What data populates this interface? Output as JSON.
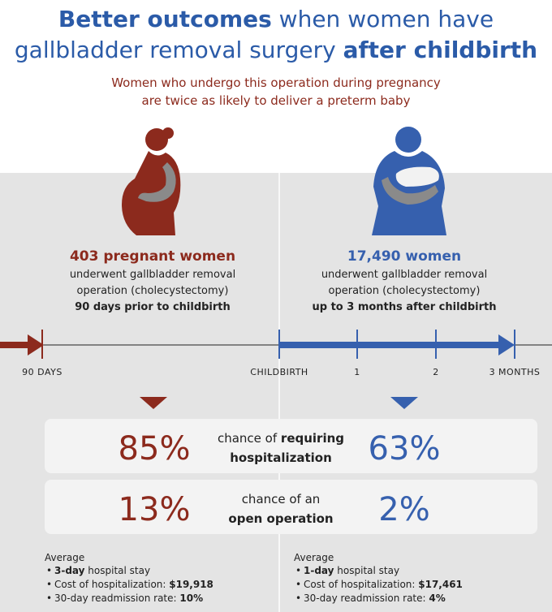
{
  "header": {
    "title": [
      [
        {
          "text": "Better outcomes",
          "bold": true
        },
        {
          "text": " when women have"
        }
      ],
      [
        {
          "text": "gallbladder removal surgery "
        },
        {
          "text": "after childbirth",
          "bold": true
        }
      ]
    ],
    "subtitle": [
      "Women who undergo this operation during pregnancy",
      "are twice as likely to deliver a preterm baby"
    ]
  },
  "groups": [
    {
      "color": "#8c2a1d",
      "count": "403 pregnant women",
      "lines": [
        {
          "text": "underwent gallbladder removal"
        },
        {
          "text": "operation (cholecystectomy)"
        },
        {
          "text": "90 days prior to childbirth",
          "bold": true
        }
      ],
      "stats": [
        "85%",
        "13%"
      ],
      "average": {
        "heading": "Average",
        "items": [
          [
            {
              "text": "3-day",
              "bold": true
            },
            {
              "text": " hospital stay"
            }
          ],
          [
            {
              "text": "Cost of hospitalization: "
            },
            {
              "text": "$19,918",
              "bold": true
            }
          ],
          [
            {
              "text": "30-day readmission rate: "
            },
            {
              "text": "10%",
              "bold": true
            }
          ]
        ]
      }
    },
    {
      "color": "#3660ae",
      "count": "17,490 women",
      "lines": [
        {
          "text": "underwent gallbladder removal"
        },
        {
          "text": "operation (cholecystectomy)"
        },
        {
          "text": "up to 3 months after childbirth",
          "bold": true
        }
      ],
      "stats": [
        "63%",
        "2%"
      ],
      "average": {
        "heading": "Average",
        "items": [
          [
            {
              "text": "1-day",
              "bold": true
            },
            {
              "text": " hospital stay"
            }
          ],
          [
            {
              "text": "Cost of hospitalization: "
            },
            {
              "text": "$17,461",
              "bold": true
            }
          ],
          [
            {
              "text": "30-day readmission rate: "
            },
            {
              "text": "4%",
              "bold": true
            }
          ]
        ]
      }
    }
  ],
  "timeline": {
    "labels": [
      "90 DAYS",
      "CHILDBIRTH",
      "1",
      "2",
      "3 MONTHS"
    ]
  },
  "stats": [
    {
      "label": [
        [
          {
            "text": "chance of "
          },
          {
            "text": "requiring",
            "bold": true
          }
        ],
        [
          {
            "text": "hospitalization",
            "bold": true
          }
        ]
      ]
    },
    {
      "label": [
        [
          {
            "text": "chance of an"
          }
        ],
        [
          {
            "text": "open operation",
            "bold": true
          }
        ]
      ]
    }
  ]
}
